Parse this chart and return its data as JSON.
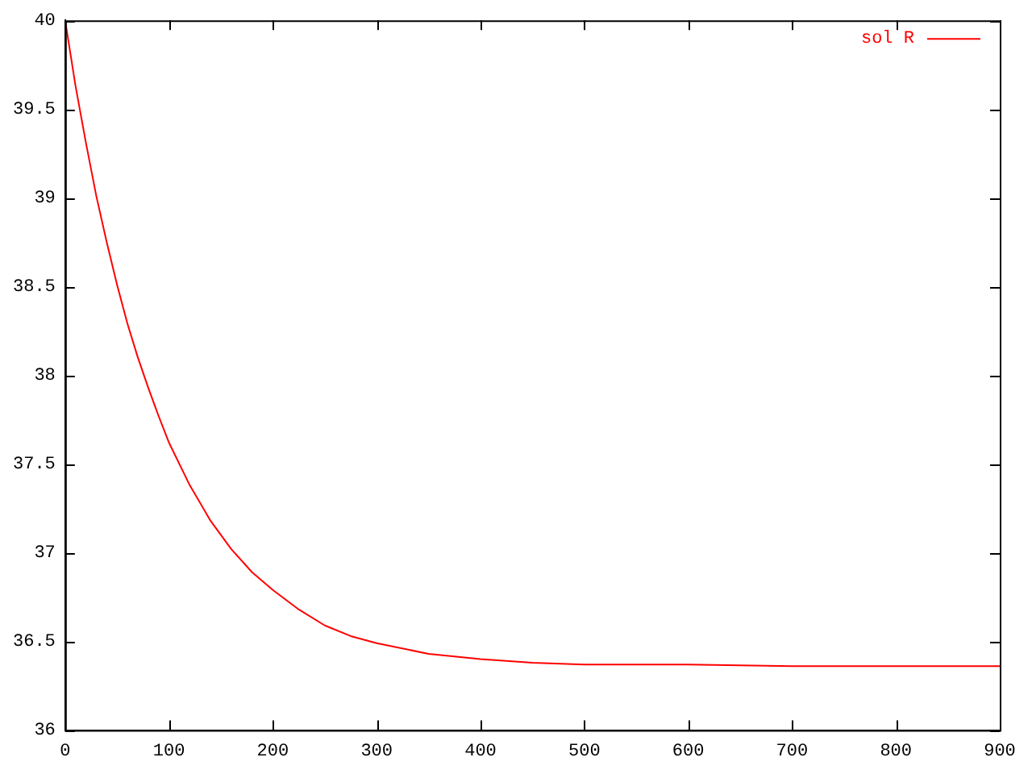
{
  "chart_data": {
    "type": "line",
    "x": [
      0,
      10,
      20,
      30,
      40,
      50,
      60,
      70,
      80,
      90,
      100,
      120,
      140,
      160,
      180,
      200,
      225,
      250,
      275,
      300,
      350,
      400,
      450,
      500,
      600,
      700,
      800,
      900
    ],
    "series": [
      {
        "name": "sol R",
        "color": "#ff0000",
        "values": [
          40,
          39.63,
          39.31,
          39.01,
          38.75,
          38.51,
          38.29,
          38.1,
          37.93,
          37.77,
          37.62,
          37.38,
          37.18,
          37.02,
          36.89,
          36.79,
          36.68,
          36.59,
          36.53,
          36.49,
          36.43,
          36.4,
          36.38,
          36.37,
          36.37,
          36.36,
          36.36,
          36.36
        ]
      }
    ],
    "xlim": [
      0,
      900
    ],
    "xticks": [
      0,
      100,
      200,
      300,
      400,
      500,
      600,
      700,
      800,
      900
    ],
    "ylim": [
      36,
      40
    ],
    "yticks": [
      36,
      36.5,
      37,
      37.5,
      38,
      38.5,
      39,
      39.5,
      40
    ],
    "grid": false,
    "legend": "top right",
    "marker": "none",
    "line_style": "solid"
  }
}
